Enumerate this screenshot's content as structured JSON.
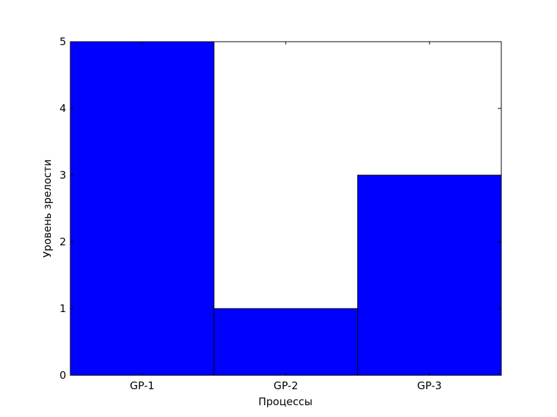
{
  "chart_data": {
    "type": "bar",
    "categories": [
      "GP-1",
      "GP-2",
      "GP-3"
    ],
    "values": [
      5,
      1,
      3
    ],
    "title": "",
    "xlabel": "Процессы",
    "ylabel": "Уровень зрелости",
    "ylim": [
      0,
      5
    ],
    "yticks": [
      0,
      1,
      2,
      3,
      4,
      5
    ],
    "grid": false,
    "bar_color": "#0000ff",
    "edge_color": "#000000"
  }
}
